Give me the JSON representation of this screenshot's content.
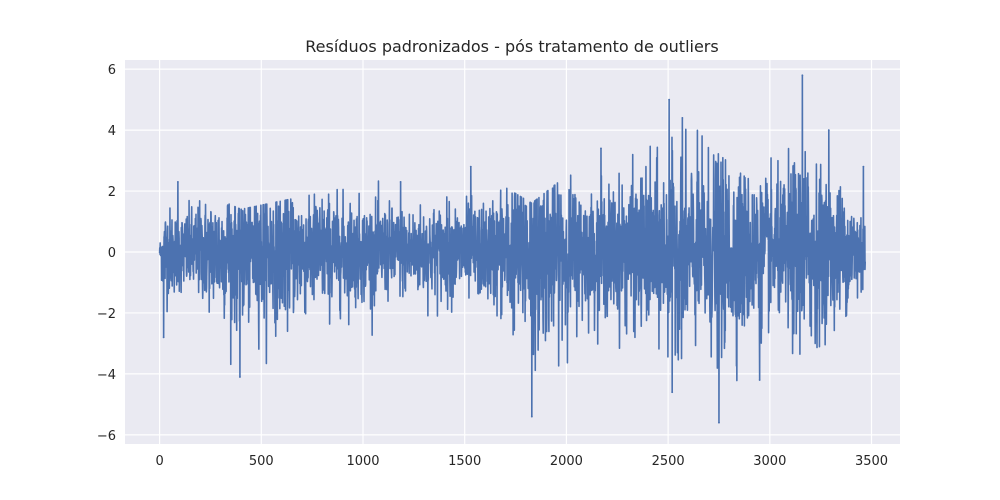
{
  "chart_data": {
    "type": "line",
    "title": "Resíduos padronizados  - pós tratamento de outliers",
    "xlabel": "",
    "ylabel": "",
    "xlim": [
      -170,
      3640
    ],
    "ylim": [
      -6.3,
      6.3
    ],
    "x_ticks": [
      0,
      500,
      1000,
      1500,
      2000,
      2500,
      3000,
      3500
    ],
    "y_ticks": [
      6,
      4,
      2,
      0,
      -2,
      -4,
      -6
    ],
    "x_tick_labels": [
      "0",
      "500",
      "1000",
      "1500",
      "2000",
      "2500",
      "3000",
      "3500"
    ],
    "y_tick_labels": [
      "6",
      "4",
      "2",
      "0",
      "−2",
      "−4",
      "−6"
    ],
    "grid": true,
    "background": "#eaeaf2",
    "grid_color": "#ffffff",
    "series": [
      {
        "color": "#4c72b0",
        "n_points": 3470,
        "envelope": [
          {
            "x": 0,
            "lo": -0.4,
            "hi": 0.4
          },
          {
            "x": 20,
            "lo": -2.8,
            "hi": 1.4
          },
          {
            "x": 100,
            "lo": -2.1,
            "hi": 2.3
          },
          {
            "x": 400,
            "lo": -4.1,
            "hi": 1.4
          },
          {
            "x": 1200,
            "lo": -2.4,
            "hi": 2.5
          },
          {
            "x": 1530,
            "lo": -1.8,
            "hi": 2.8
          },
          {
            "x": 1830,
            "lo": -5.4,
            "hi": 1.6
          },
          {
            "x": 2170,
            "lo": -2.9,
            "hi": 3.4
          },
          {
            "x": 2510,
            "lo": -4.6,
            "hi": 5.0
          },
          {
            "x": 2750,
            "lo": -5.6,
            "hi": 3.2
          },
          {
            "x": 2950,
            "lo": -4.2,
            "hi": 2.1
          },
          {
            "x": 3160,
            "lo": -3.3,
            "hi": 5.8
          },
          {
            "x": 3290,
            "lo": -3.0,
            "hi": 4.0
          },
          {
            "x": 3460,
            "lo": -1.2,
            "hi": 2.8
          }
        ],
        "notable_points": [
          {
            "x": 20,
            "y": -2.8
          },
          {
            "x": 90,
            "y": 2.3
          },
          {
            "x": 395,
            "y": -4.1
          },
          {
            "x": 1185,
            "y": 2.3
          },
          {
            "x": 1530,
            "y": 2.8
          },
          {
            "x": 1830,
            "y": -5.4
          },
          {
            "x": 2170,
            "y": 3.4
          },
          {
            "x": 2505,
            "y": 5.0
          },
          {
            "x": 2520,
            "y": -4.6
          },
          {
            "x": 2570,
            "y": 4.4
          },
          {
            "x": 2750,
            "y": -5.6
          },
          {
            "x": 2950,
            "y": -4.2
          },
          {
            "x": 3160,
            "y": 5.8
          },
          {
            "x": 3290,
            "y": 4.0
          },
          {
            "x": 3460,
            "y": 2.8
          }
        ]
      }
    ]
  }
}
